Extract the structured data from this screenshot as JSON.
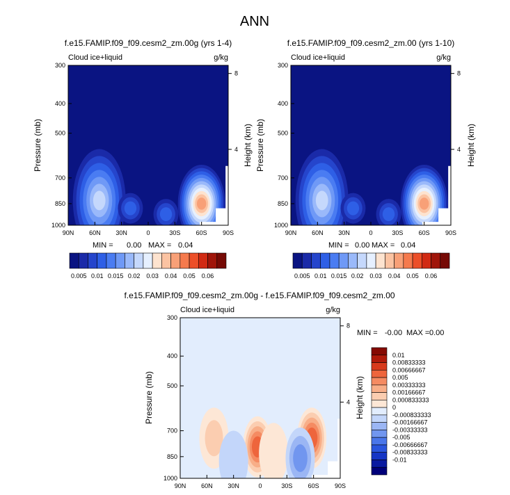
{
  "page_title": "ANN",
  "colors": {
    "top_palette": [
      "#0a1482",
      "#1a2aa8",
      "#2545cc",
      "#2e5fe6",
      "#4a7cf2",
      "#6f99f6",
      "#9ab9fa",
      "#c5d8fc",
      "#e6f0ff",
      "#fde3cf",
      "#fbc3a2",
      "#f8a077",
      "#f57a4d",
      "#ec4f28",
      "#d12a13",
      "#a0150a",
      "#760a05"
    ],
    "diff_palette": [
      "#00007a",
      "#0a1aa0",
      "#1535c5",
      "#2a55de",
      "#4a76ea",
      "#7196ef",
      "#9bb6f4",
      "#c3d6fa",
      "#e2edfd",
      "#fde7d6",
      "#fbcdb0",
      "#f8ae88",
      "#f58b62",
      "#ee653c",
      "#d83a1c",
      "#b01a0a",
      "#850a03"
    ]
  },
  "chart_data": [
    {
      "type": "heatmap",
      "title": "f.e15.FAMIP.f09_f09.cesm2_zm.00g (yrs 1-4)",
      "left_label": "Cloud ice+liquid",
      "right_label": "g/kg",
      "xlabel": "",
      "ylabel": "Pressure (mb)",
      "ylabel_right": "Height (km)",
      "x_ticks": [
        "90N",
        "60N",
        "30N",
        "0",
        "30S",
        "60S",
        "90S"
      ],
      "y_ticks": [
        "300",
        "400",
        "500",
        "700",
        "850",
        "1000"
      ],
      "y_tick_values": [
        300,
        400,
        500,
        700,
        850,
        1000
      ],
      "ylim": [
        300,
        1000
      ],
      "right_ticks": [
        "8",
        "4"
      ],
      "right_tick_values": [
        8,
        4
      ],
      "stats": {
        "min_label": "MIN =",
        "min_value": "0.00",
        "max_label": "MAX =",
        "max_value": "0.04"
      },
      "colorbar_labels": [
        "0.005",
        "0.01",
        "0.015",
        "0.02",
        "0.03",
        "0.04",
        "0.05",
        "0.06"
      ],
      "blobs": [
        {
          "lat": -60,
          "p": 850,
          "peak": 0.04
        },
        {
          "lat": 55,
          "p": 830,
          "peak": 0.026
        },
        {
          "lat": 20,
          "p": 880,
          "peak": 0.01
        },
        {
          "lat": -20,
          "p": 920,
          "peak": 0.01
        }
      ]
    },
    {
      "type": "heatmap",
      "title": "f.e15.FAMIP.f09_f09.cesm2_zm.00 (yrs 1-10)",
      "left_label": "Cloud ice+liquid",
      "right_label": "g/kg",
      "xlabel": "",
      "ylabel": "Pressure (mb)",
      "ylabel_right": "Height (km)",
      "x_ticks": [
        "90N",
        "60N",
        "30N",
        "0",
        "30S",
        "60S",
        "90S"
      ],
      "y_ticks": [
        "300",
        "400",
        "500",
        "700",
        "850",
        "1000"
      ],
      "y_tick_values": [
        300,
        400,
        500,
        700,
        850,
        1000
      ],
      "ylim": [
        300,
        1000
      ],
      "right_ticks": [
        "8",
        "4"
      ],
      "right_tick_values": [
        8,
        4
      ],
      "stats": {
        "min_label": "MIN =",
        "min_value": "0.00",
        "max_label": "MAX =",
        "max_value": "0.04"
      },
      "colorbar_labels": [
        "0.005",
        "0.01",
        "0.015",
        "0.02",
        "0.03",
        "0.04",
        "0.05",
        "0.06"
      ],
      "blobs": [
        {
          "lat": -60,
          "p": 850,
          "peak": 0.04
        },
        {
          "lat": 55,
          "p": 830,
          "peak": 0.026
        },
        {
          "lat": 20,
          "p": 880,
          "peak": 0.01
        },
        {
          "lat": -20,
          "p": 920,
          "peak": 0.01
        }
      ]
    },
    {
      "type": "heatmap",
      "title": "f.e15.FAMIP.f09_f09.cesm2_zm.00g - f.e15.FAMIP.f09_f09.cesm2_zm.00",
      "left_label": "Cloud ice+liquid",
      "right_label": "g/kg",
      "xlabel": "",
      "ylabel": "Pressure (mb)",
      "ylabel_right": "Height (km)",
      "x_ticks": [
        "90N",
        "60N",
        "30N",
        "0",
        "30S",
        "60S",
        "90S"
      ],
      "y_ticks": [
        "300",
        "400",
        "500",
        "700",
        "850",
        "1000"
      ],
      "y_tick_values": [
        300,
        400,
        500,
        700,
        850,
        1000
      ],
      "ylim": [
        300,
        1000
      ],
      "right_ticks": [
        "8",
        "4"
      ],
      "right_tick_values": [
        8,
        4
      ],
      "stats": {
        "min_label": "MIN =",
        "min_value": "-0.00",
        "max_label": "MAX =",
        "max_value": "0.00"
      },
      "colorbar_labels": [
        "0.01",
        "0.00833333",
        "0.00666667",
        "0.005",
        "0.00333333",
        "0.00166667",
        "0.000833333",
        "0",
        "-0.000833333",
        "-0.00166667",
        "-0.00333333",
        "-0.005",
        "-0.00666667",
        "-0.00833333",
        "-0.01"
      ],
      "blobs": [
        {
          "lat": -58,
          "p": 740,
          "peak": 0.0045
        },
        {
          "lat": 3,
          "p": 790,
          "peak": 0.004
        },
        {
          "lat": 52,
          "p": 740,
          "peak": 0.002
        },
        {
          "lat": -15,
          "p": 830,
          "peak": 0.0012
        },
        {
          "lat": -45,
          "p": 860,
          "peak": -0.0025
        },
        {
          "lat": 30,
          "p": 880,
          "peak": -0.0012
        }
      ]
    }
  ]
}
